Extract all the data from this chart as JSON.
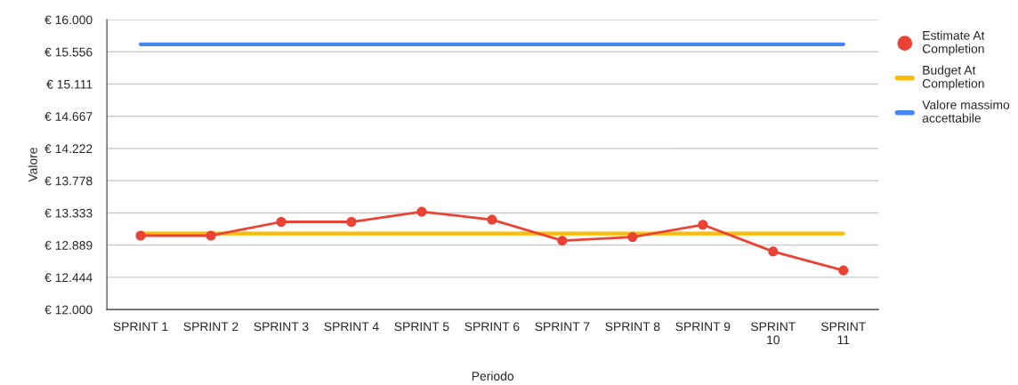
{
  "chart_data": {
    "type": "line",
    "xlabel": "Periodo",
    "ylabel": "Valore",
    "categories": [
      "SPRINT 1",
      "SPRINT 2",
      "SPRINT 3",
      "SPRINT 4",
      "SPRINT 5",
      "SPRINT 6",
      "SPRINT 7",
      "SPRINT 8",
      "SPRINT 9",
      "SPRINT 10",
      "SPRINT 11"
    ],
    "series": [
      {
        "name": "Estimate At Completion",
        "color": "#ea4335",
        "marker": "circle",
        "values": [
          13020,
          13020,
          13210,
          13210,
          13350,
          13240,
          12950,
          13000,
          13170,
          12800,
          12540
        ]
      },
      {
        "name": "Budget At Completion",
        "color": "#fbbc04",
        "marker": "none",
        "values": [
          13050,
          13050,
          13050,
          13050,
          13050,
          13050,
          13050,
          13050,
          13050,
          13050,
          13050
        ]
      },
      {
        "name": "Valore massimo accettabile",
        "color": "#4285f4",
        "marker": "none",
        "values": [
          15660,
          15660,
          15660,
          15660,
          15660,
          15660,
          15660,
          15660,
          15660,
          15660,
          15660
        ]
      }
    ],
    "ylim": [
      12000,
      16000
    ],
    "yticks": [
      {
        "value": 12000,
        "label": "€ 12.000"
      },
      {
        "value": 12444.4,
        "label": "€ 12.444"
      },
      {
        "value": 12888.9,
        "label": "€ 12.889"
      },
      {
        "value": 13333.3,
        "label": "€ 13.333"
      },
      {
        "value": 13777.8,
        "label": "€ 13.778"
      },
      {
        "value": 14222.2,
        "label": "€ 14.222"
      },
      {
        "value": 14666.7,
        "label": "€ 14.667"
      },
      {
        "value": 15111.1,
        "label": "€ 15.111"
      },
      {
        "value": 15555.6,
        "label": "€ 15.556"
      },
      {
        "value": 16000,
        "label": "€ 16.000"
      }
    ],
    "grid": "y",
    "legend": "right",
    "line_style": "solid"
  }
}
